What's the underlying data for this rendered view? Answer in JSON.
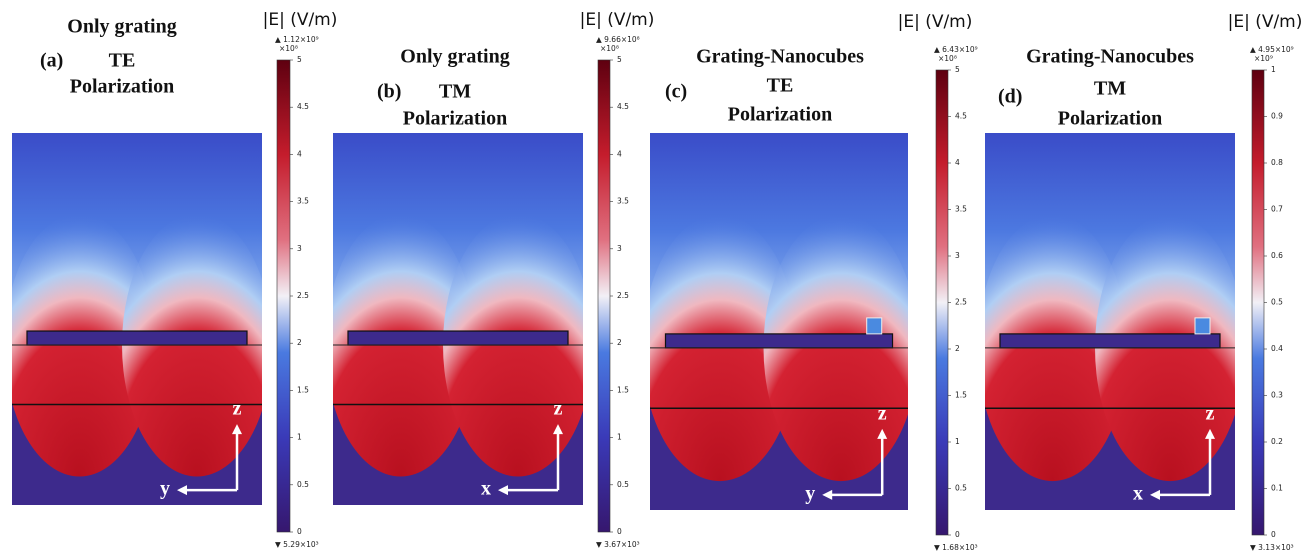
{
  "panels": [
    {
      "label": "(a)",
      "title": [
        "Only grating",
        "TE",
        "Polarization"
      ],
      "colorbar": {
        "title": "|E| (V/m)",
        "max": "▲ 1.12×10⁹",
        "multiplier": "×10⁸",
        "min": "▼ 5.29×10³",
        "range": [
          0,
          5
        ],
        "ticks": [
          0,
          0.5,
          1,
          1.5,
          2,
          2.5,
          3,
          3.5,
          4,
          4.5,
          5
        ]
      },
      "axes": {
        "horizontal": "y",
        "vertical": "z"
      }
    },
    {
      "label": "(b)",
      "title": [
        "Only grating",
        "TM",
        "Polarization"
      ],
      "colorbar": {
        "title": "|E| (V/m)",
        "max": "▲ 9.66×10⁸",
        "multiplier": "×10⁸",
        "min": "▼ 3.67×10³",
        "range": [
          0,
          5
        ],
        "ticks": [
          0,
          0.5,
          1,
          1.5,
          2,
          2.5,
          3,
          3.5,
          4,
          4.5,
          5
        ]
      },
      "axes": {
        "horizontal": "x",
        "vertical": "z"
      }
    },
    {
      "label": "(c)",
      "title": [
        "Grating-Nanocubes",
        "TE",
        "Polarization"
      ],
      "colorbar": {
        "title": "|E| (V/m)",
        "max": "▲ 6.43×10⁹",
        "multiplier": "×10⁸",
        "min": "▼ 1.68×10³",
        "range": [
          0,
          5
        ],
        "ticks": [
          0,
          0.5,
          1,
          1.5,
          2,
          2.5,
          3,
          3.5,
          4,
          4.5,
          5
        ]
      },
      "axes": {
        "horizontal": "y",
        "vertical": "z"
      }
    },
    {
      "label": "(d)",
      "title": [
        "Grating-Nanocubes",
        "TM",
        "Polarization"
      ],
      "colorbar": {
        "title": "|E| (V/m)",
        "max": "▲ 4.95×10⁹",
        "multiplier": "×10⁹",
        "min": "▼ 3.13×10³",
        "range": [
          0,
          1
        ],
        "ticks": [
          0,
          0.1,
          0.2,
          0.3,
          0.4,
          0.5,
          0.6,
          0.7,
          0.8,
          0.9,
          1
        ]
      },
      "axes": {
        "horizontal": "x",
        "vertical": "z"
      }
    }
  ]
}
